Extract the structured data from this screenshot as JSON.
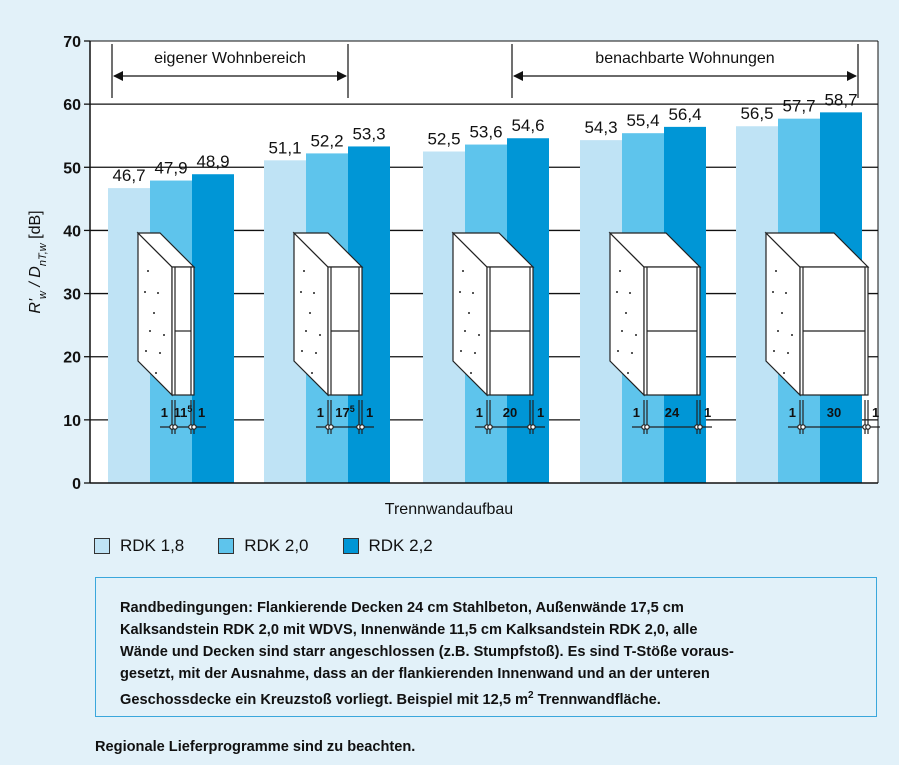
{
  "chart_data": {
    "type": "bar",
    "title": "",
    "xlabel": "Trennwandaufbau",
    "ylabel": "R'w / DnT,w [dB]",
    "ylabel_parts": {
      "r": "R'",
      "r_sub": "w",
      "sep": " / ",
      "d": "D",
      "d_sub": "nT,w",
      "unit": " [dB]"
    },
    "ylim": [
      0,
      70
    ],
    "yticks": [
      0,
      10,
      20,
      30,
      40,
      50,
      60,
      70
    ],
    "grid": true,
    "group_count": 5,
    "series": [
      {
        "name": "RDK 1,8",
        "color": "#bfe3f5",
        "values": [
          46.7,
          51.1,
          52.5,
          54.3,
          56.5
        ],
        "labels": [
          "46,7",
          "51,1",
          "52,5",
          "54,3",
          "56,5"
        ]
      },
      {
        "name": "RDK 2,0",
        "color": "#5ec4ec",
        "values": [
          47.9,
          52.2,
          53.6,
          55.4,
          57.7
        ],
        "labels": [
          "47,9",
          "52,2",
          "53,6",
          "55,4",
          "57,7"
        ]
      },
      {
        "name": "RDK 2,2",
        "color": "#0096d6",
        "values": [
          48.9,
          53.3,
          54.6,
          56.4,
          58.7
        ],
        "labels": [
          "48,9",
          "53,3",
          "54,6",
          "56,4",
          "58,7"
        ]
      }
    ],
    "wall_thickness": [
      {
        "left": "1",
        "core": "11",
        "core_sup": "5",
        "right": "1"
      },
      {
        "left": "1",
        "core": "17",
        "core_sup": "5",
        "right": "1"
      },
      {
        "left": "1",
        "core": "20",
        "core_sup": "",
        "right": "1"
      },
      {
        "left": "1",
        "core": "24",
        "core_sup": "",
        "right": "1"
      },
      {
        "left": "1",
        "core": "30",
        "core_sup": "",
        "right": "1"
      }
    ],
    "annotations": [
      {
        "text": "eigener Wohnbereich",
        "from_group": 0,
        "to_group": 1
      },
      {
        "text": "benachbarte Wohnungen",
        "from_group": 2,
        "to_group": 4
      }
    ]
  },
  "legend": [
    {
      "label": "RDK 1,8",
      "color": "#bfe3f5"
    },
    {
      "label": "RDK 2,0",
      "color": "#5ec4ec"
    },
    {
      "label": "RDK 2,2",
      "color": "#0096d6"
    }
  ],
  "note": {
    "line1": "Randbedingungen: Flankierende Decken 24 cm Stahlbeton, Außenwände 17,5 cm",
    "line2": "Kalksandstein RDK 2,0 mit WDVS, Innenwände 11,5 cm Kalksandstein RDK 2,0, alle",
    "line3": "Wände und Decken sind starr angeschlossen (z.B. Stumpfstoß). Es sind T-Stöße voraus-",
    "line4": "gesetzt, mit der Ausnahme, dass an der flankierenden Innenwand und an der unteren",
    "line5_a": "Geschossdecke ein Kreuzstoß vorliegt. Beispiel mit 12,5 m",
    "line5_sup": "2",
    "line5_b": " Trennwandfläche."
  },
  "footer": "Regionale Lieferprogramme sind zu beachten."
}
